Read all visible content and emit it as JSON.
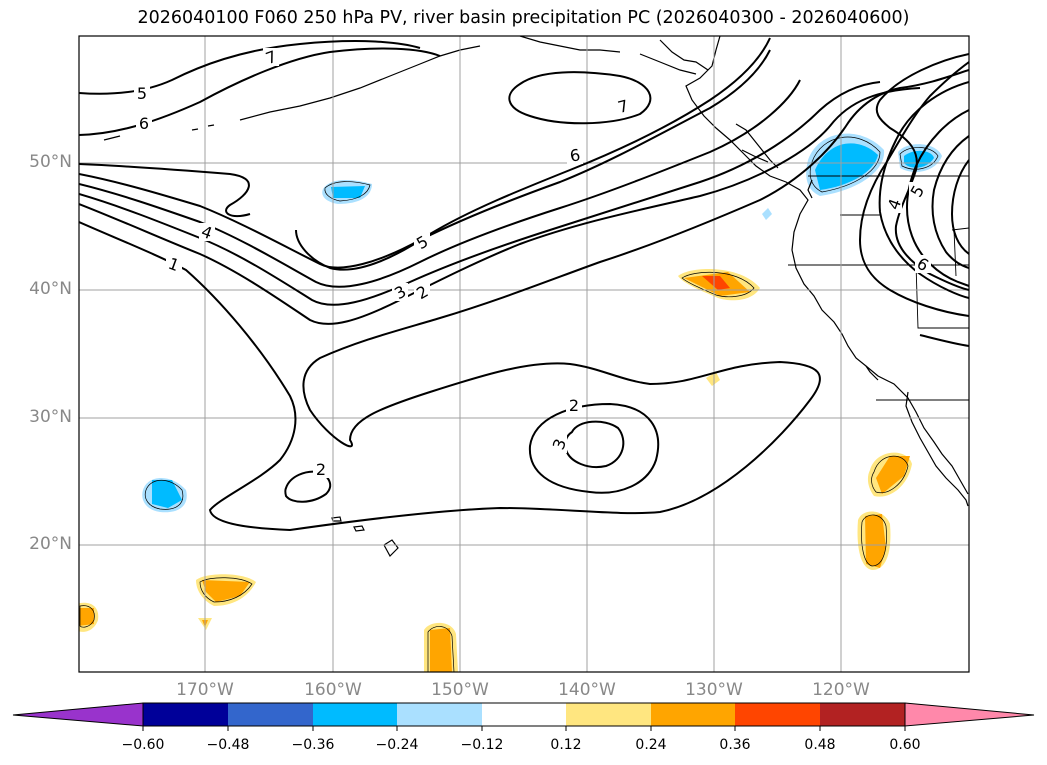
{
  "title": "2026040100 F060 250 hPa PV, river basin precipitation PC (2026040300 - 2026040600)",
  "lat_labels": [
    "50°N",
    "40°N",
    "30°N",
    "20°N"
  ],
  "lon_labels": [
    "170°W",
    "160°W",
    "150°W",
    "140°W",
    "130°W",
    "120°W"
  ],
  "contour_labels": [
    "7",
    "5",
    "6",
    "4",
    "1",
    "7",
    "6",
    "5",
    "3",
    "2",
    "2",
    "3",
    "2",
    "5",
    "4",
    "6"
  ],
  "colorbar": {
    "ticks": [
      "−0.60",
      "−0.48",
      "−0.36",
      "−0.24",
      "−0.12",
      "0.12",
      "0.24",
      "0.36",
      "0.48",
      "0.60"
    ],
    "colors": [
      "#9933cc",
      "#000099",
      "#3366cc",
      "#00bbff",
      "#aae0ff",
      "#ffffff",
      "#ffe680",
      "#ffa500",
      "#ff4500",
      "#b22222",
      "#ff88aa"
    ]
  }
}
